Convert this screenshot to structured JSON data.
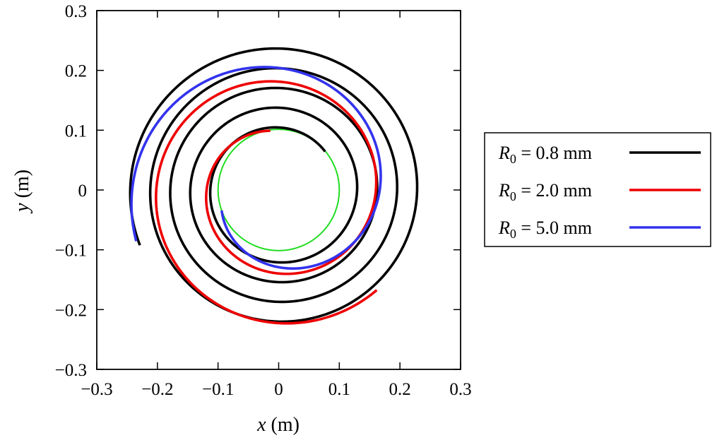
{
  "chart_data": {
    "type": "line",
    "title": "",
    "xlabel": {
      "var": "x",
      "unit": " (m)"
    },
    "ylabel": {
      "var": "y",
      "unit": " (m)"
    },
    "xlim": [
      -0.3,
      0.3
    ],
    "ylim": [
      -0.3,
      0.3
    ],
    "xticks": [
      -0.3,
      -0.2,
      -0.1,
      0,
      0.1,
      0.2,
      0.3
    ],
    "yticks": [
      -0.3,
      -0.2,
      -0.1,
      0,
      0.1,
      0.2,
      0.3
    ],
    "xtick_labels": [
      "−0.3",
      "−0.2",
      "−0.1",
      "0",
      "0.1",
      "0.2",
      "0.3"
    ],
    "ytick_labels": [
      "−0.3",
      "−0.2",
      "−0.1",
      "0",
      "0.1",
      "0.2",
      "0.3"
    ],
    "grid": false,
    "legend_position": "right",
    "legend_box": true,
    "reference_circle": {
      "radius": 0.1,
      "center": [
        0,
        0
      ],
      "color": "#22dd22"
    },
    "series": [
      {
        "name": "R0 = 0.8 mm",
        "label_var": "R",
        "label_sub": "0",
        "label_rest": " = 0.8 mm",
        "color": "#000000",
        "spiral": {
          "start_angle_deg": 40,
          "r_start": 0.1,
          "r_growth_per_turn": 0.033,
          "turns": 4.45
        }
      },
      {
        "name": "R0 = 2.0 mm",
        "label_var": "R",
        "label_sub": "0",
        "label_rest": " = 2.0 mm",
        "color": "#ee0000",
        "spiral": {
          "start_angle_deg": 98,
          "r_start": 0.1,
          "r_growth_per_turn": 0.083,
          "turns": 1.6
        }
      },
      {
        "name": "R0 = 5.0 mm",
        "label_var": "R",
        "label_sub": "0",
        "label_rest": " = 5.0 mm",
        "color": "#3333ee",
        "spiral": {
          "start_angle_deg": 200,
          "r_start": 0.1,
          "r_growth_per_turn": 0.15,
          "turns": 1.0
        }
      }
    ]
  }
}
